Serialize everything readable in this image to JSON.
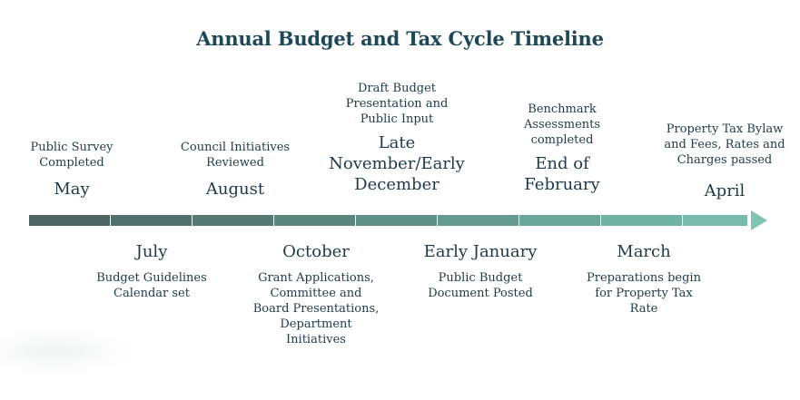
{
  "title": "Annual Budget and Tax Cycle Timeline",
  "timeline": {
    "segment_colors": [
      "#4d6662",
      "#517069",
      "#557a72",
      "#5a857b",
      "#5f9085",
      "#649b8e",
      "#69a798",
      "#70b3a3",
      "#77bcab"
    ],
    "arrow_color": "#7fc4b3"
  },
  "milestones_above": [
    {
      "month": "May",
      "desc": [
        "Public Survey",
        "Completed"
      ]
    },
    {
      "month": "August",
      "desc": [
        "Council Initiatives",
        "Reviewed"
      ]
    },
    {
      "month": [
        "Late",
        "November/Early",
        "December"
      ],
      "desc": [
        "Draft Budget",
        "Presentation and",
        "Public Input"
      ]
    },
    {
      "month": [
        "End of",
        "February"
      ],
      "desc": [
        "Benchmark",
        "Assessments",
        "completed"
      ]
    },
    {
      "month": "April",
      "desc": [
        "Property Tax Bylaw",
        "and Fees, Rates and",
        "Charges passed"
      ]
    }
  ],
  "milestones_below": [
    {
      "month": "July",
      "desc": [
        "Budget Guidelines",
        "Calendar set"
      ]
    },
    {
      "month": "October",
      "desc": [
        "Grant Applications,",
        "Committee and",
        "Board Presentations,",
        "Department",
        "Initiatives"
      ]
    },
    {
      "month": "Early January",
      "desc": [
        "Public Budget",
        "Document Posted"
      ]
    },
    {
      "month": "March",
      "desc": [
        "Preparations begin",
        "for Property Tax",
        "Rate"
      ]
    }
  ]
}
